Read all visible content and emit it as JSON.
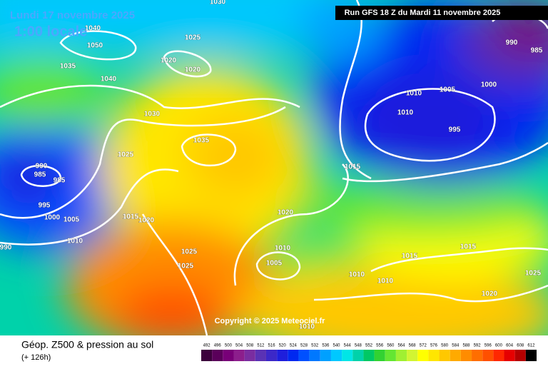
{
  "header": {
    "date": "Lundi 17 novembre 2025",
    "time": "1:00 locale",
    "run": "Run GFS 18 Z du Mardi 11 novembre 2025"
  },
  "copyright": "Copyright © 2025 Meteociel.fr",
  "footer": {
    "title": "Géop. Z500 & pression au sol",
    "lead": "(+ 126h)"
  },
  "scale": {
    "values": [
      492,
      496,
      500,
      504,
      508,
      512,
      516,
      520,
      524,
      528,
      532,
      536,
      540,
      544,
      548,
      552,
      556,
      560,
      564,
      568,
      572,
      576,
      580,
      584,
      588,
      592,
      596,
      600,
      604,
      608,
      612
    ],
    "colors": [
      "#3c003c",
      "#5a005a",
      "#780078",
      "#8c1e8c",
      "#7a2da0",
      "#5a32b4",
      "#3c28c8",
      "#1e1edc",
      "#0028f0",
      "#0050ff",
      "#0078ff",
      "#00a0ff",
      "#00c8ff",
      "#00e6e6",
      "#00d2aa",
      "#00c864",
      "#32d232",
      "#64e632",
      "#a0f032",
      "#d2f532",
      "#ffff00",
      "#ffe600",
      "#ffc800",
      "#ffaa00",
      "#ff8c00",
      "#ff6e00",
      "#ff5000",
      "#ff2800",
      "#e60000",
      "#b40000",
      "#000000"
    ]
  },
  "isobar_labels": [
    "1030",
    "1040",
    "1050",
    "1025",
    "1035",
    "1020",
    "1020",
    "1040",
    "1030",
    "1035",
    "1025",
    "990",
    "985",
    "985",
    "995",
    "1000",
    "1005",
    "1010",
    "990",
    "1015",
    "1020",
    "1025",
    "1025",
    "1015",
    "1020",
    "1010",
    "1005",
    "1010",
    "1010",
    "1010",
    "1015",
    "1015",
    "1025",
    "1020",
    "1010",
    "1010",
    "1005",
    "1000",
    "995",
    "990",
    "985"
  ]
}
